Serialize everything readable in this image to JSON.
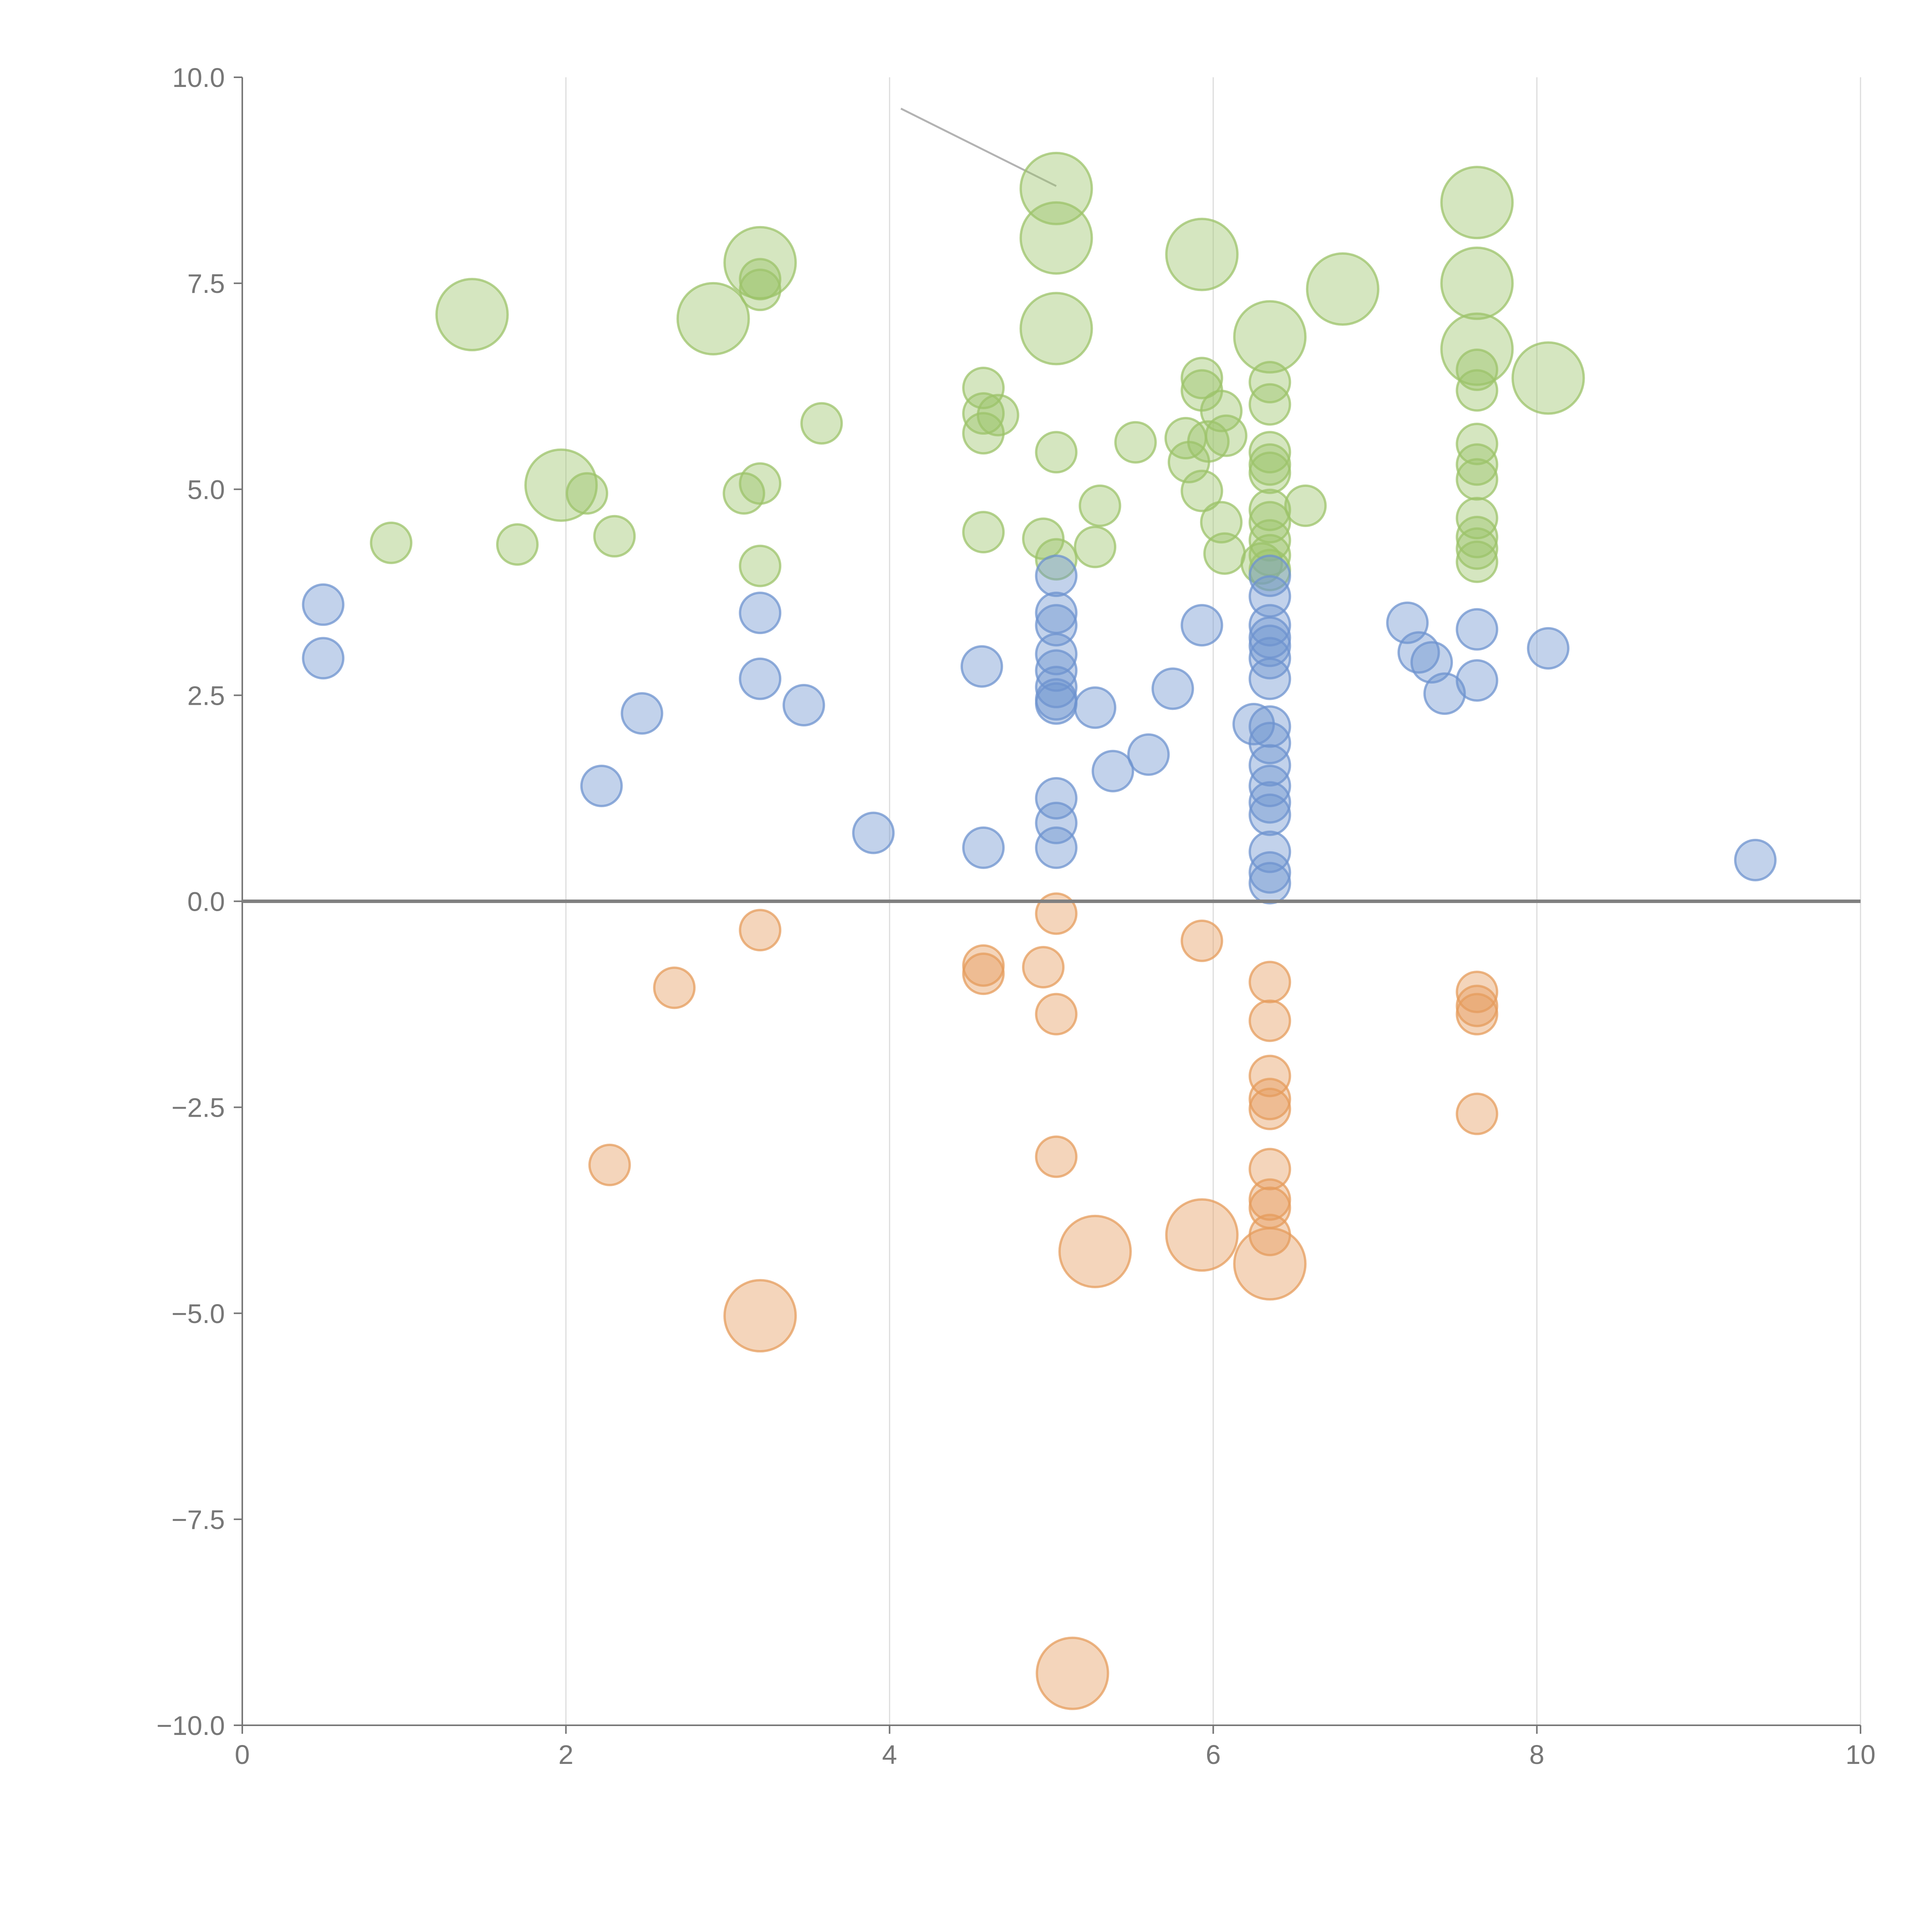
{
  "chart_data": {
    "type": "scatter",
    "title": "",
    "xlabel": "",
    "ylabel": "",
    "xlim": [
      0,
      10
    ],
    "ylim": [
      -10,
      10
    ],
    "grid": "vertical",
    "x_ticks": [
      "0",
      "2",
      "4",
      "6",
      "8",
      "10"
    ],
    "y_ticks": [
      "10.0",
      "7.5",
      "5.0",
      "2.5",
      "0.0",
      "−2.5",
      "−5.0",
      "−7.5",
      "−10.0"
    ],
    "x_tick_values": [
      0,
      2,
      4,
      6,
      8,
      10
    ],
    "y_tick_values": [
      10,
      7.5,
      5,
      2.5,
      0,
      -2.5,
      -5,
      -7.5,
      -10
    ],
    "zero_line": 0,
    "colors": {
      "green": "#9cc36a",
      "blue": "#6d93cf",
      "orange": "#e59c5c",
      "axis": "#777777",
      "grid": "#dcdcdc",
      "callout": "#b3b3b3"
    },
    "callout_line": {
      "from": [
        4.07,
        9.62
      ],
      "to": [
        5.03,
        8.68
      ]
    },
    "series": [
      {
        "name": "green",
        "color": "#9cc36a",
        "points": [
          [
            1.42,
            7.12,
            3
          ],
          [
            1.97,
            5.05,
            3
          ],
          [
            2.91,
            7.07,
            3
          ],
          [
            3.2,
            7.75,
            3
          ],
          [
            5.03,
            8.65,
            3
          ],
          [
            5.03,
            8.05,
            3
          ],
          [
            5.03,
            6.95,
            3
          ],
          [
            5.93,
            7.85,
            3
          ],
          [
            6.35,
            6.85,
            3
          ],
          [
            6.8,
            7.43,
            3
          ],
          [
            7.63,
            8.48,
            3
          ],
          [
            7.63,
            7.5,
            3
          ],
          [
            7.63,
            6.7,
            3
          ],
          [
            8.07,
            6.35,
            3
          ],
          [
            0.92,
            4.35,
            1
          ],
          [
            1.7,
            4.33,
            1
          ],
          [
            2.13,
            4.95,
            1
          ],
          [
            2.3,
            4.43,
            1
          ],
          [
            3.1,
            4.95,
            1
          ],
          [
            3.2,
            5.07,
            1
          ],
          [
            3.2,
            4.07,
            1
          ],
          [
            3.2,
            7.55,
            1
          ],
          [
            3.2,
            7.42,
            1
          ],
          [
            3.58,
            5.8,
            1
          ],
          [
            4.58,
            6.23,
            1
          ],
          [
            4.58,
            5.92,
            1
          ],
          [
            4.58,
            5.68,
            1
          ],
          [
            4.58,
            4.48,
            1
          ],
          [
            4.67,
            5.9,
            1
          ],
          [
            4.95,
            4.4,
            1
          ],
          [
            5.03,
            5.45,
            1
          ],
          [
            5.03,
            4.15,
            1
          ],
          [
            5.27,
            4.3,
            1
          ],
          [
            5.3,
            4.8,
            1
          ],
          [
            5.52,
            5.57,
            1
          ],
          [
            5.83,
            5.62,
            1
          ],
          [
            5.85,
            5.33,
            1
          ],
          [
            5.93,
            6.35,
            1
          ],
          [
            5.93,
            6.2,
            1
          ],
          [
            5.93,
            4.98,
            1
          ],
          [
            5.97,
            5.58,
            1
          ],
          [
            6.05,
            5.95,
            1
          ],
          [
            6.08,
            5.65,
            1
          ],
          [
            6.05,
            4.6,
            1
          ],
          [
            6.07,
            4.22,
            1
          ],
          [
            6.3,
            4.1,
            1
          ],
          [
            6.35,
            6.3,
            1
          ],
          [
            6.35,
            6.03,
            1
          ],
          [
            6.35,
            5.45,
            1
          ],
          [
            6.35,
            5.3,
            1
          ],
          [
            6.35,
            5.2,
            1
          ],
          [
            6.35,
            4.75,
            1
          ],
          [
            6.35,
            4.6,
            1
          ],
          [
            6.35,
            4.38,
            1
          ],
          [
            6.35,
            4.2,
            1
          ],
          [
            6.35,
            4.02,
            1
          ],
          [
            6.57,
            4.8,
            1
          ],
          [
            7.63,
            6.45,
            1
          ],
          [
            7.63,
            6.2,
            1
          ],
          [
            7.63,
            5.55,
            1
          ],
          [
            7.63,
            5.3,
            1
          ],
          [
            7.63,
            5.12,
            1
          ],
          [
            7.63,
            4.65,
            1
          ],
          [
            7.63,
            4.42,
            1
          ],
          [
            7.63,
            4.28,
            1
          ],
          [
            7.63,
            4.12,
            1
          ]
        ]
      },
      {
        "name": "blue",
        "color": "#6d93cf",
        "points": [
          [
            0.5,
            3.6,
            1
          ],
          [
            0.5,
            2.95,
            1
          ],
          [
            2.22,
            1.4,
            1
          ],
          [
            2.47,
            2.28,
            1
          ],
          [
            3.2,
            3.5,
            1
          ],
          [
            3.2,
            2.7,
            1
          ],
          [
            3.47,
            2.38,
            1
          ],
          [
            3.9,
            0.83,
            1
          ],
          [
            4.57,
            2.85,
            1
          ],
          [
            4.58,
            0.65,
            1
          ],
          [
            5.03,
            3.95,
            1
          ],
          [
            5.03,
            3.5,
            1
          ],
          [
            5.03,
            3.35,
            1
          ],
          [
            5.03,
            3.0,
            1
          ],
          [
            5.03,
            2.8,
            1
          ],
          [
            5.03,
            2.6,
            1
          ],
          [
            5.03,
            2.45,
            1
          ],
          [
            5.03,
            2.4,
            1
          ],
          [
            5.03,
            1.25,
            1
          ],
          [
            5.03,
            0.95,
            1
          ],
          [
            5.03,
            0.65,
            1
          ],
          [
            5.27,
            2.35,
            1
          ],
          [
            5.38,
            1.58,
            1
          ],
          [
            5.6,
            1.78,
            1
          ],
          [
            5.75,
            2.58,
            1
          ],
          [
            5.93,
            3.35,
            1
          ],
          [
            6.25,
            2.15,
            1
          ],
          [
            6.35,
            3.95,
            1
          ],
          [
            6.35,
            3.7,
            1
          ],
          [
            6.35,
            3.35,
            1
          ],
          [
            6.35,
            3.2,
            1
          ],
          [
            6.35,
            3.1,
            1
          ],
          [
            6.35,
            2.95,
            1
          ],
          [
            6.35,
            2.7,
            1
          ],
          [
            6.35,
            2.12,
            1
          ],
          [
            6.35,
            1.92,
            1
          ],
          [
            6.35,
            1.65,
            1
          ],
          [
            6.35,
            1.4,
            1
          ],
          [
            6.35,
            1.2,
            1
          ],
          [
            6.35,
            1.05,
            1
          ],
          [
            6.35,
            0.6,
            1
          ],
          [
            6.35,
            0.35,
            1
          ],
          [
            6.35,
            0.22,
            1
          ],
          [
            7.2,
            3.38,
            1
          ],
          [
            7.27,
            3.02,
            1
          ],
          [
            7.35,
            2.9,
            1
          ],
          [
            7.43,
            2.52,
            1
          ],
          [
            7.63,
            3.3,
            1
          ],
          [
            7.63,
            2.68,
            1
          ],
          [
            8.07,
            3.07,
            1
          ],
          [
            9.35,
            0.5,
            1
          ]
        ]
      },
      {
        "name": "orange",
        "color": "#e59c5c",
        "points": [
          [
            3.2,
            -0.35,
            1
          ],
          [
            2.67,
            -1.05,
            1
          ],
          [
            2.27,
            -3.2,
            1
          ],
          [
            4.58,
            -0.78,
            1
          ],
          [
            4.58,
            -0.88,
            1
          ],
          [
            4.95,
            -0.8,
            1
          ],
          [
            5.03,
            -0.15,
            1
          ],
          [
            5.03,
            -1.37,
            1
          ],
          [
            5.03,
            -3.1,
            1
          ],
          [
            5.93,
            -0.48,
            1
          ],
          [
            6.35,
            -0.98,
            1
          ],
          [
            6.35,
            -1.45,
            1
          ],
          [
            6.35,
            -2.12,
            1
          ],
          [
            6.35,
            -2.4,
            1
          ],
          [
            6.35,
            -2.52,
            1
          ],
          [
            6.35,
            -3.25,
            1
          ],
          [
            6.35,
            -3.62,
            1
          ],
          [
            6.35,
            -3.72,
            1
          ],
          [
            6.35,
            -4.05,
            1
          ],
          [
            7.63,
            -1.1,
            1
          ],
          [
            7.63,
            -1.27,
            1
          ],
          [
            7.63,
            -1.37,
            1
          ],
          [
            7.63,
            -2.58,
            1
          ],
          [
            3.2,
            -5.03,
            3
          ],
          [
            5.27,
            -4.25,
            3
          ],
          [
            5.93,
            -4.05,
            3
          ],
          [
            6.35,
            -4.4,
            3
          ],
          [
            5.13,
            -9.37,
            3
          ]
        ]
      }
    ]
  }
}
